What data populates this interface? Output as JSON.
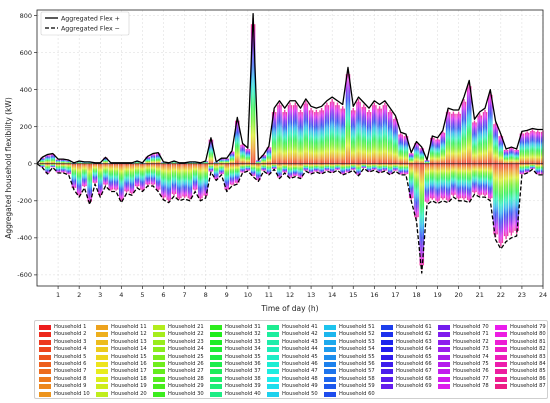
{
  "chart_data": {
    "type": "line",
    "xlabel": "Time of day (h)",
    "ylabel": "Aggregated household flexibility (kW)",
    "xlim": [
      0,
      24
    ],
    "ylim": [
      -660,
      830
    ],
    "x_ticks": [
      1,
      2,
      3,
      4,
      5,
      6,
      7,
      8,
      9,
      10,
      11,
      12,
      13,
      14,
      15,
      16,
      17,
      18,
      19,
      20,
      21,
      22,
      23,
      24
    ],
    "y_ticks": [
      -600,
      -400,
      -200,
      0,
      200,
      400,
      600,
      800
    ],
    "grid": true,
    "legend_top": [
      {
        "name": "Aggregated Flex +",
        "style": "solid"
      },
      {
        "name": "Aggregated Flex −",
        "style": "dashed"
      }
    ],
    "x": [
      0.0,
      0.25,
      0.5,
      0.75,
      1.0,
      1.25,
      1.5,
      1.75,
      2.0,
      2.25,
      2.5,
      2.75,
      3.0,
      3.25,
      3.5,
      3.75,
      4.0,
      4.25,
      4.5,
      4.75,
      5.0,
      5.25,
      5.5,
      5.75,
      6.0,
      6.25,
      6.5,
      6.75,
      7.0,
      7.25,
      7.5,
      7.75,
      8.0,
      8.25,
      8.5,
      8.75,
      9.0,
      9.25,
      9.5,
      9.75,
      10.0,
      10.25,
      10.5,
      10.75,
      11.0,
      11.25,
      11.5,
      11.75,
      12.0,
      12.25,
      12.5,
      12.75,
      13.0,
      13.25,
      13.5,
      13.75,
      14.0,
      14.25,
      14.5,
      14.75,
      15.0,
      15.25,
      15.5,
      15.75,
      16.0,
      16.25,
      16.5,
      16.75,
      17.0,
      17.25,
      17.5,
      17.75,
      18.0,
      18.25,
      18.5,
      18.75,
      19.0,
      19.25,
      19.5,
      19.75,
      20.0,
      20.25,
      20.5,
      20.75,
      21.0,
      21.25,
      21.5,
      21.75,
      22.0,
      22.25,
      22.5,
      22.75,
      23.0,
      23.25,
      23.5,
      23.75,
      24.0
    ],
    "series": [
      {
        "name": "Aggregated Flex +",
        "values": [
          0,
          35,
          50,
          55,
          25,
          25,
          20,
          5,
          15,
          10,
          10,
          5,
          5,
          35,
          5,
          5,
          5,
          5,
          5,
          15,
          5,
          40,
          55,
          60,
          10,
          5,
          15,
          5,
          5,
          10,
          10,
          5,
          15,
          140,
          10,
          30,
          30,
          70,
          250,
          110,
          85,
          810,
          20,
          50,
          95,
          300,
          340,
          300,
          340,
          340,
          300,
          350,
          310,
          300,
          310,
          340,
          360,
          340,
          320,
          520,
          310,
          360,
          330,
          300,
          340,
          320,
          340,
          300,
          260,
          170,
          160,
          60,
          120,
          90,
          20,
          150,
          140,
          180,
          300,
          290,
          290,
          360,
          450,
          240,
          280,
          300,
          400,
          230,
          160,
          80,
          90,
          80,
          175,
          180,
          190,
          185,
          185
        ]
      },
      {
        "name": "Aggregated Flex −",
        "values": [
          0,
          -20,
          -55,
          -20,
          -50,
          -50,
          -60,
          -140,
          -180,
          -130,
          -220,
          -110,
          -180,
          -120,
          -150,
          -150,
          -210,
          -160,
          -170,
          -130,
          -150,
          -120,
          -120,
          -150,
          -195,
          -210,
          -175,
          -200,
          -190,
          -200,
          -150,
          -200,
          -185,
          -45,
          -90,
          -60,
          -150,
          -120,
          -110,
          -50,
          -40,
          -70,
          -95,
          -40,
          -60,
          -30,
          -80,
          -50,
          -80,
          -70,
          -80,
          -40,
          -55,
          -45,
          -55,
          -40,
          -50,
          -35,
          -60,
          -50,
          -35,
          -65,
          -25,
          -45,
          -35,
          -50,
          -40,
          -60,
          -40,
          -60,
          -60,
          -200,
          -310,
          -590,
          -220,
          -200,
          -215,
          -200,
          -210,
          -180,
          -200,
          -200,
          -210,
          -165,
          -180,
          -180,
          -200,
          -410,
          -460,
          -420,
          -400,
          -390,
          -60,
          -50,
          -30,
          -60,
          -60
        ]
      }
    ],
    "households": [
      "Household 1",
      "Household 2",
      "Household 3",
      "Household 4",
      "Household 5",
      "Household 6",
      "Household 7",
      "Household 8",
      "Household 9",
      "Household 10",
      "Household 11",
      "Household 12",
      "Household 13",
      "Household 14",
      "Household 15",
      "Household 16",
      "Household 17",
      "Household 18",
      "Household 19",
      "Household 20",
      "Household 21",
      "Household 22",
      "Household 23",
      "Household 24",
      "Household 25",
      "Household 26",
      "Household 27",
      "Household 28",
      "Household 29",
      "Household 30",
      "Household 31",
      "Household 32",
      "Household 33",
      "Household 34",
      "Household 35",
      "Household 36",
      "Household 37",
      "Household 38",
      "Household 39",
      "Household 40",
      "Household 41",
      "Household 42",
      "Household 43",
      "Household 44",
      "Household 45",
      "Household 46",
      "Household 47",
      "Household 48",
      "Household 49",
      "Household 50",
      "Household 51",
      "Household 52",
      "Household 53",
      "Household 54",
      "Household 55",
      "Household 56",
      "Household 57",
      "Household 58",
      "Household 59",
      "Household 60",
      "Household 61",
      "Household 62",
      "Household 63",
      "Household 64",
      "Household 65",
      "Household 66",
      "Household 67",
      "Household 68",
      "Household 69",
      "Household 70",
      "Household 71",
      "Household 72",
      "Household 73",
      "Household 74",
      "Household 75",
      "Household 76",
      "Household 77",
      "Household 78",
      "Household 79",
      "Household 80",
      "Household 81",
      "Household 82",
      "Household 83",
      "Household 84",
      "Household 85",
      "Household 86",
      "Household 87"
    ],
    "legend_columns": [
      [
        1,
        2,
        3,
        4,
        5,
        6,
        7,
        8,
        9,
        10
      ],
      [
        11,
        12,
        13,
        14,
        15,
        16,
        17,
        18,
        19,
        20
      ],
      [
        21,
        22,
        23,
        24,
        25,
        26,
        27,
        28,
        29,
        30
      ],
      [
        31,
        32,
        33,
        34,
        35,
        36,
        37,
        38,
        39,
        40
      ],
      [
        41,
        42,
        43,
        44,
        45,
        46,
        47,
        48,
        49,
        50
      ],
      [
        51,
        52,
        53,
        54,
        55,
        56,
        57,
        58,
        59,
        60
      ],
      [
        61,
        62,
        63,
        64,
        65,
        66,
        67,
        68,
        69
      ],
      [
        70,
        71,
        72,
        73,
        74,
        75,
        76,
        77,
        78
      ],
      [
        79,
        80,
        81,
        82,
        83,
        84,
        85,
        86,
        87
      ]
    ]
  },
  "colors": {
    "aggregate_line": "#000000",
    "grid": "#d9d9d9",
    "palette": "rainbow hue 0-330 across households"
  }
}
